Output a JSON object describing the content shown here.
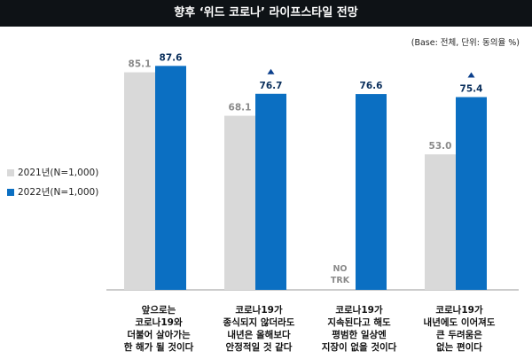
{
  "title": "향후 ‘위드 코로나’ 라이프스타일 전망",
  "note": "(Base: 전체, 단위: 동의율 %)",
  "chart_data": {
    "type": "bar",
    "categories": [
      "앞으로는\n코로나19와\n더불어 살아가는\n한 해가 될 것이다",
      "코로나19가\n종식되지 않더라도\n내년은 올해보다\n안정적일 것 같다",
      "코로나19가\n지속된다고 해도\n평범한 일상엔\n지장이 없을 것이다",
      "코로나19가\n내년에도 이어져도\n큰 두려움은\n없는 편이다"
    ],
    "series": [
      {
        "name": "2021년(N=1,000)",
        "color": "#d9d9d9",
        "values": [
          85.1,
          68.1,
          null,
          53.0
        ],
        "labels": [
          "85.1",
          "68.1",
          "NO\nTRK",
          "53.0"
        ]
      },
      {
        "name": "2022년(N=1,000)",
        "color": "#0b6fc2",
        "values": [
          87.6,
          76.7,
          76.6,
          75.4
        ],
        "labels": [
          "87.6",
          "76.7",
          "76.6",
          "75.4"
        ]
      }
    ],
    "up_markers": [
      false,
      true,
      false,
      true
    ],
    "ylim": [
      0,
      100
    ],
    "grid": false,
    "legend": "left"
  }
}
